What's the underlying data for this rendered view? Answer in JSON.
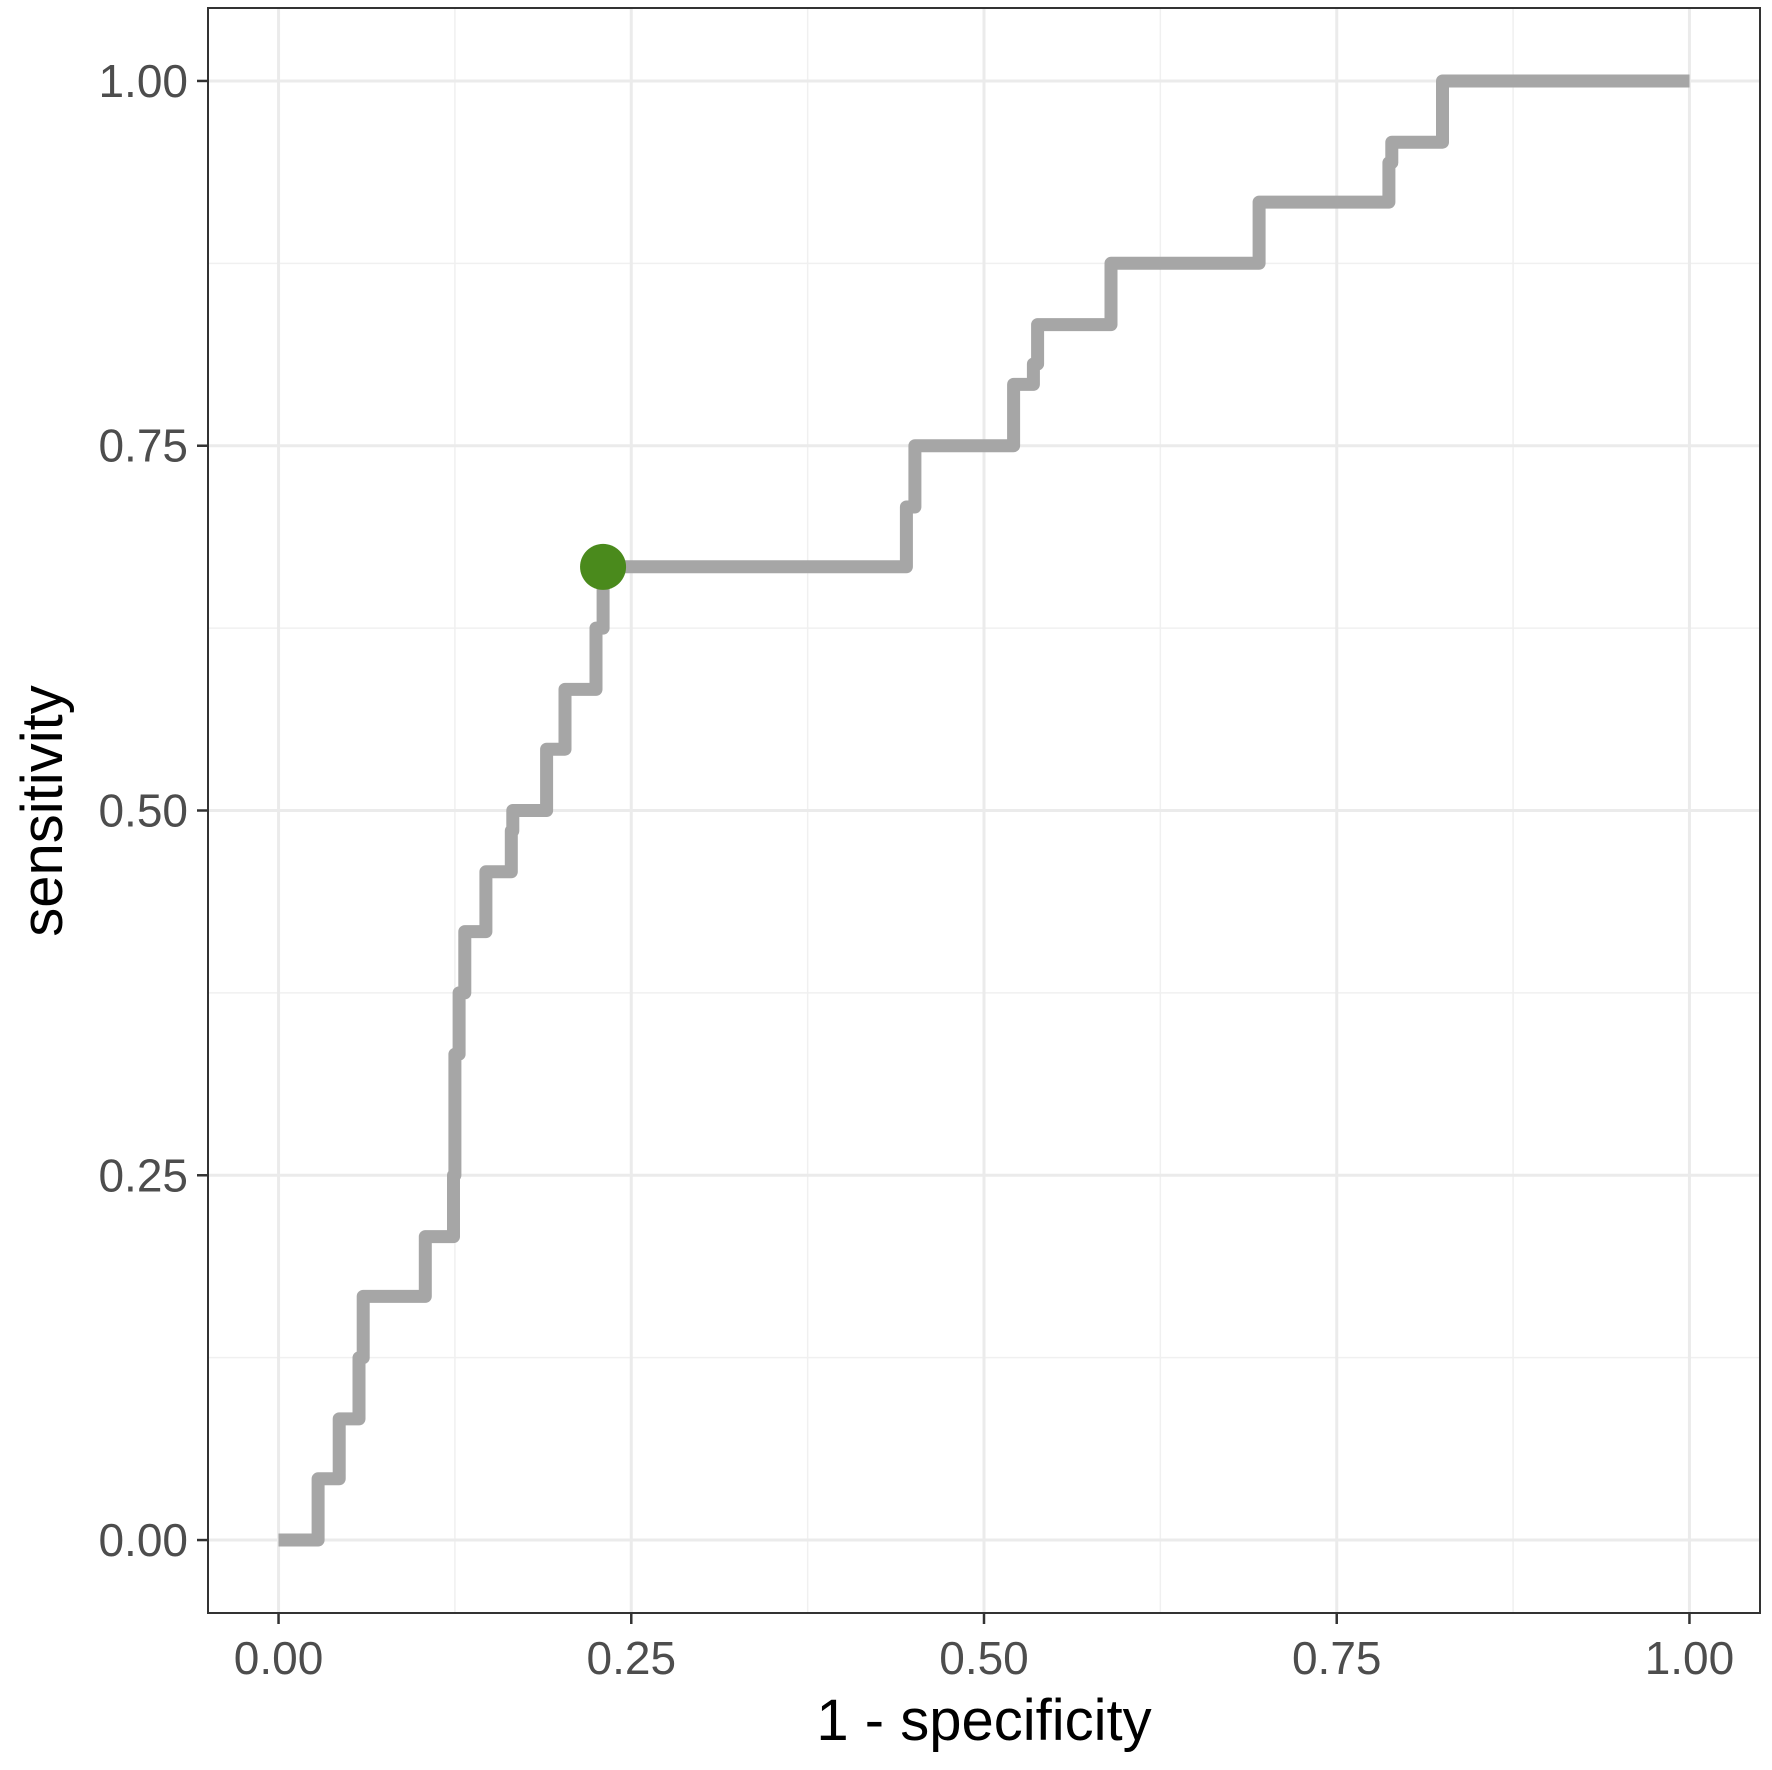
{
  "chart_data": {
    "type": "line",
    "title": "",
    "xlabel": "1 - specificity",
    "ylabel": "sensitivity",
    "xlim": [
      -0.05,
      1.05
    ],
    "ylim": [
      -0.05,
      1.05
    ],
    "x_ticks": [
      0,
      0.25,
      0.5,
      0.75,
      1
    ],
    "y_ticks": [
      0,
      0.25,
      0.5,
      0.75,
      1
    ],
    "x_tick_labels": [
      "0.00",
      "0.25",
      "0.50",
      "0.75",
      "1.00"
    ],
    "y_tick_labels": [
      "0.00",
      "0.25",
      "0.50",
      "0.75",
      "1.00"
    ],
    "grid": true,
    "background": "#ffffff",
    "series": [
      {
        "color": "#a6a6a6",
        "step": true,
        "x": [
          0.0,
          0.028,
          0.028,
          0.043,
          0.043,
          0.057,
          0.057,
          0.06,
          0.06,
          0.104,
          0.104,
          0.124,
          0.124,
          0.125,
          0.125,
          0.128,
          0.128,
          0.132,
          0.132,
          0.147,
          0.147,
          0.165,
          0.165,
          0.166,
          0.166,
          0.19,
          0.19,
          0.203,
          0.203,
          0.225,
          0.225,
          0.23,
          0.23,
          0.445,
          0.445,
          0.451,
          0.451,
          0.521,
          0.521,
          0.535,
          0.535,
          0.538,
          0.538,
          0.59,
          0.59,
          0.695,
          0.695,
          0.787,
          0.787,
          0.789,
          0.789,
          0.825,
          0.825,
          1.0
        ],
        "y": [
          0.0,
          0.0,
          0.042,
          0.042,
          0.083,
          0.083,
          0.125,
          0.125,
          0.167,
          0.167,
          0.208,
          0.208,
          0.25,
          0.25,
          0.333,
          0.333,
          0.375,
          0.375,
          0.417,
          0.417,
          0.458,
          0.458,
          0.486,
          0.486,
          0.5,
          0.5,
          0.542,
          0.542,
          0.583,
          0.583,
          0.625,
          0.625,
          0.667,
          0.667,
          0.708,
          0.708,
          0.75,
          0.75,
          0.792,
          0.792,
          0.806,
          0.806,
          0.833,
          0.833,
          0.875,
          0.875,
          0.917,
          0.917,
          0.944,
          0.944,
          0.958,
          0.958,
          1.0,
          1.0
        ]
      }
    ],
    "highlight_point": {
      "x": 0.23,
      "y": 0.667,
      "color": "#4a8a1c"
    }
  }
}
